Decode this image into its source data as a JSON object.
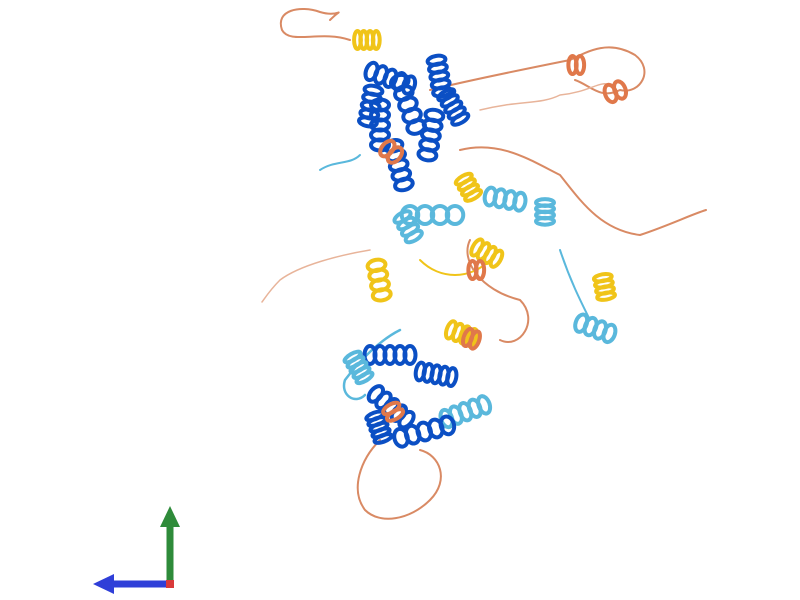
{
  "viewer": {
    "background": "#ffffff",
    "palette": {
      "very_high": "#0b4fc4",
      "confident": "#5ab8dc",
      "low": "#f0c419",
      "very_low": "#e0784a",
      "coil_low": "#d98a64"
    },
    "icons": [
      "protein-structure-icon",
      "axis-gizmo-icon"
    ]
  },
  "axes": {
    "x_color": "#2f3fd8",
    "y_color": "#2e8b3a",
    "z_color": "#d93a3a"
  }
}
